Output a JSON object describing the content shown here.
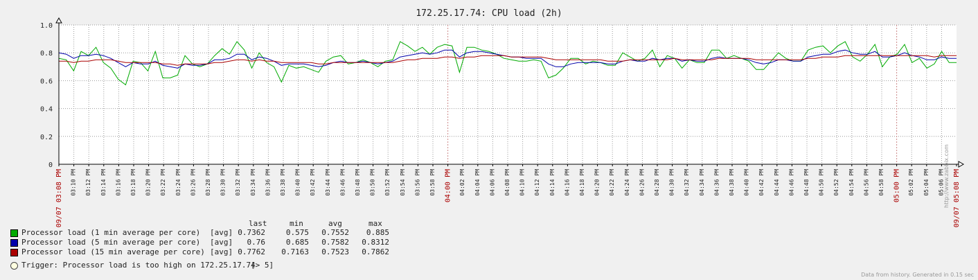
{
  "title": "172.25.17.74: CPU load (2h)",
  "chart_data": {
    "type": "line",
    "title": "172.25.17.74: CPU load (2h)",
    "ylim": [
      0,
      1.0
    ],
    "y_ticks": [
      "0",
      "0.2",
      "0.4",
      "0.6",
      "0.8",
      "1.0"
    ],
    "grid": true,
    "x_ticks": [
      {
        "label": "09/07 03:08 PM",
        "red": true
      },
      {
        "label": "03:10 PM"
      },
      {
        "label": "03:12 PM"
      },
      {
        "label": "03:14 PM"
      },
      {
        "label": "03:16 PM"
      },
      {
        "label": "03:18 PM"
      },
      {
        "label": "03:20 PM"
      },
      {
        "label": "03:22 PM"
      },
      {
        "label": "03:24 PM"
      },
      {
        "label": "03:26 PM"
      },
      {
        "label": "03:28 PM"
      },
      {
        "label": "03:30 PM"
      },
      {
        "label": "03:32 PM"
      },
      {
        "label": "03:34 PM"
      },
      {
        "label": "03:36 PM"
      },
      {
        "label": "03:38 PM"
      },
      {
        "label": "03:40 PM"
      },
      {
        "label": "03:42 PM"
      },
      {
        "label": "03:44 PM"
      },
      {
        "label": "03:46 PM"
      },
      {
        "label": "03:48 PM"
      },
      {
        "label": "03:50 PM"
      },
      {
        "label": "03:52 PM"
      },
      {
        "label": "03:54 PM"
      },
      {
        "label": "03:56 PM"
      },
      {
        "label": "03:58 PM"
      },
      {
        "label": "04:00 PM",
        "red": true
      },
      {
        "label": "04:02 PM"
      },
      {
        "label": "04:04 PM"
      },
      {
        "label": "04:06 PM"
      },
      {
        "label": "04:08 PM"
      },
      {
        "label": "04:10 PM"
      },
      {
        "label": "04:12 PM"
      },
      {
        "label": "04:14 PM"
      },
      {
        "label": "04:16 PM"
      },
      {
        "label": "04:18 PM"
      },
      {
        "label": "04:20 PM"
      },
      {
        "label": "04:22 PM"
      },
      {
        "label": "04:24 PM"
      },
      {
        "label": "04:26 PM"
      },
      {
        "label": "04:28 PM"
      },
      {
        "label": "04:30 PM"
      },
      {
        "label": "04:32 PM"
      },
      {
        "label": "04:34 PM"
      },
      {
        "label": "04:36 PM"
      },
      {
        "label": "04:38 PM"
      },
      {
        "label": "04:40 PM"
      },
      {
        "label": "04:42 PM"
      },
      {
        "label": "04:44 PM"
      },
      {
        "label": "04:46 PM"
      },
      {
        "label": "04:48 PM"
      },
      {
        "label": "04:50 PM"
      },
      {
        "label": "04:52 PM"
      },
      {
        "label": "04:54 PM"
      },
      {
        "label": "04:56 PM"
      },
      {
        "label": "04:58 PM"
      },
      {
        "label": "05:00 PM",
        "red": true
      },
      {
        "label": "05:02 PM"
      },
      {
        "label": "05:04 PM"
      },
      {
        "label": "05:06 PM"
      },
      {
        "label": "09/07 05:08 PM",
        "red": true
      }
    ],
    "series": [
      {
        "name": "Processor load (1 min average per core)",
        "color": "#00aa00",
        "values": [
          0.76,
          0.75,
          0.67,
          0.81,
          0.78,
          0.84,
          0.73,
          0.69,
          0.61,
          0.57,
          0.74,
          0.73,
          0.67,
          0.81,
          0.62,
          0.62,
          0.64,
          0.78,
          0.72,
          0.7,
          0.72,
          0.78,
          0.83,
          0.79,
          0.88,
          0.82,
          0.69,
          0.8,
          0.73,
          0.7,
          0.59,
          0.71,
          0.69,
          0.7,
          0.68,
          0.66,
          0.74,
          0.77,
          0.78,
          0.72,
          0.73,
          0.75,
          0.73,
          0.7,
          0.74,
          0.75,
          0.88,
          0.85,
          0.81,
          0.84,
          0.79,
          0.84,
          0.86,
          0.85,
          0.66,
          0.84,
          0.84,
          0.82,
          0.81,
          0.79,
          0.76,
          0.75,
          0.74,
          0.74,
          0.75,
          0.74,
          0.62,
          0.64,
          0.69,
          0.76,
          0.76,
          0.72,
          0.74,
          0.73,
          0.71,
          0.71,
          0.8,
          0.77,
          0.74,
          0.76,
          0.82,
          0.7,
          0.78,
          0.76,
          0.69,
          0.75,
          0.73,
          0.73,
          0.82,
          0.82,
          0.76,
          0.78,
          0.76,
          0.74,
          0.68,
          0.68,
          0.74,
          0.8,
          0.76,
          0.74,
          0.74,
          0.82,
          0.84,
          0.85,
          0.8,
          0.85,
          0.88,
          0.77,
          0.74,
          0.79,
          0.86,
          0.7,
          0.77,
          0.79,
          0.86,
          0.73,
          0.76,
          0.69,
          0.72,
          0.81,
          0.73,
          0.73
        ]
      },
      {
        "name": "Processor load (5 min average per core)",
        "color": "#0000aa",
        "values": [
          0.8,
          0.79,
          0.76,
          0.78,
          0.78,
          0.79,
          0.78,
          0.76,
          0.73,
          0.7,
          0.73,
          0.72,
          0.72,
          0.74,
          0.71,
          0.7,
          0.69,
          0.72,
          0.71,
          0.71,
          0.72,
          0.75,
          0.75,
          0.76,
          0.79,
          0.79,
          0.75,
          0.77,
          0.76,
          0.74,
          0.71,
          0.72,
          0.72,
          0.72,
          0.71,
          0.7,
          0.71,
          0.73,
          0.74,
          0.73,
          0.73,
          0.74,
          0.73,
          0.72,
          0.73,
          0.74,
          0.77,
          0.78,
          0.79,
          0.8,
          0.79,
          0.8,
          0.82,
          0.82,
          0.77,
          0.8,
          0.81,
          0.81,
          0.8,
          0.79,
          0.78,
          0.77,
          0.77,
          0.76,
          0.76,
          0.76,
          0.72,
          0.7,
          0.7,
          0.72,
          0.73,
          0.73,
          0.73,
          0.73,
          0.72,
          0.72,
          0.74,
          0.75,
          0.74,
          0.74,
          0.76,
          0.75,
          0.76,
          0.76,
          0.74,
          0.75,
          0.74,
          0.74,
          0.76,
          0.77,
          0.76,
          0.76,
          0.76,
          0.75,
          0.73,
          0.72,
          0.73,
          0.75,
          0.75,
          0.74,
          0.74,
          0.77,
          0.78,
          0.79,
          0.79,
          0.81,
          0.82,
          0.8,
          0.79,
          0.79,
          0.81,
          0.77,
          0.77,
          0.78,
          0.8,
          0.78,
          0.77,
          0.75,
          0.75,
          0.77,
          0.76,
          0.76
        ]
      },
      {
        "name": "Processor load (15 min average per core)",
        "color": "#aa0000",
        "values": [
          0.74,
          0.74,
          0.73,
          0.74,
          0.74,
          0.75,
          0.75,
          0.75,
          0.74,
          0.73,
          0.73,
          0.73,
          0.73,
          0.73,
          0.72,
          0.72,
          0.71,
          0.72,
          0.72,
          0.72,
          0.72,
          0.73,
          0.73,
          0.74,
          0.75,
          0.75,
          0.74,
          0.75,
          0.74,
          0.74,
          0.73,
          0.73,
          0.73,
          0.73,
          0.73,
          0.72,
          0.72,
          0.73,
          0.73,
          0.73,
          0.73,
          0.73,
          0.73,
          0.73,
          0.73,
          0.73,
          0.74,
          0.75,
          0.75,
          0.76,
          0.76,
          0.76,
          0.77,
          0.77,
          0.76,
          0.77,
          0.77,
          0.78,
          0.78,
          0.78,
          0.78,
          0.77,
          0.77,
          0.77,
          0.77,
          0.77,
          0.76,
          0.75,
          0.75,
          0.75,
          0.75,
          0.75,
          0.75,
          0.75,
          0.74,
          0.74,
          0.74,
          0.75,
          0.75,
          0.75,
          0.75,
          0.75,
          0.75,
          0.76,
          0.75,
          0.75,
          0.75,
          0.75,
          0.75,
          0.76,
          0.76,
          0.76,
          0.76,
          0.76,
          0.75,
          0.75,
          0.75,
          0.75,
          0.75,
          0.75,
          0.75,
          0.76,
          0.76,
          0.77,
          0.77,
          0.77,
          0.78,
          0.78,
          0.78,
          0.78,
          0.78,
          0.78,
          0.78,
          0.78,
          0.78,
          0.78,
          0.78,
          0.78,
          0.77,
          0.78,
          0.78,
          0.78
        ]
      }
    ]
  },
  "legend": {
    "headers": {
      "last": "last",
      "min": "min",
      "avg": "avg",
      "max": "max"
    },
    "rows": [
      {
        "label": "Processor load (1 min average per core)",
        "func": "[avg]",
        "last": "0.7362",
        "min": "0.575",
        "avg": "0.7552",
        "max": "0.885"
      },
      {
        "label": "Processor load (5 min average per core)",
        "func": "[avg]",
        "last": "0.76",
        "min": "0.685",
        "avg": "0.7582",
        "max": "0.8312"
      },
      {
        "label": "Processor load (15 min average per core)",
        "func": "[avg]",
        "last": "0.7762",
        "min": "0.7163",
        "avg": "0.7523",
        "max": "0.7862"
      }
    ],
    "trigger": "Trigger: Processor load is too high on 172.25.17.74",
    "trigger_cond": "[> 5]"
  },
  "watermark": "http://www.zabbix.com",
  "footer": "Data from history. Generated in 0.15 sec"
}
